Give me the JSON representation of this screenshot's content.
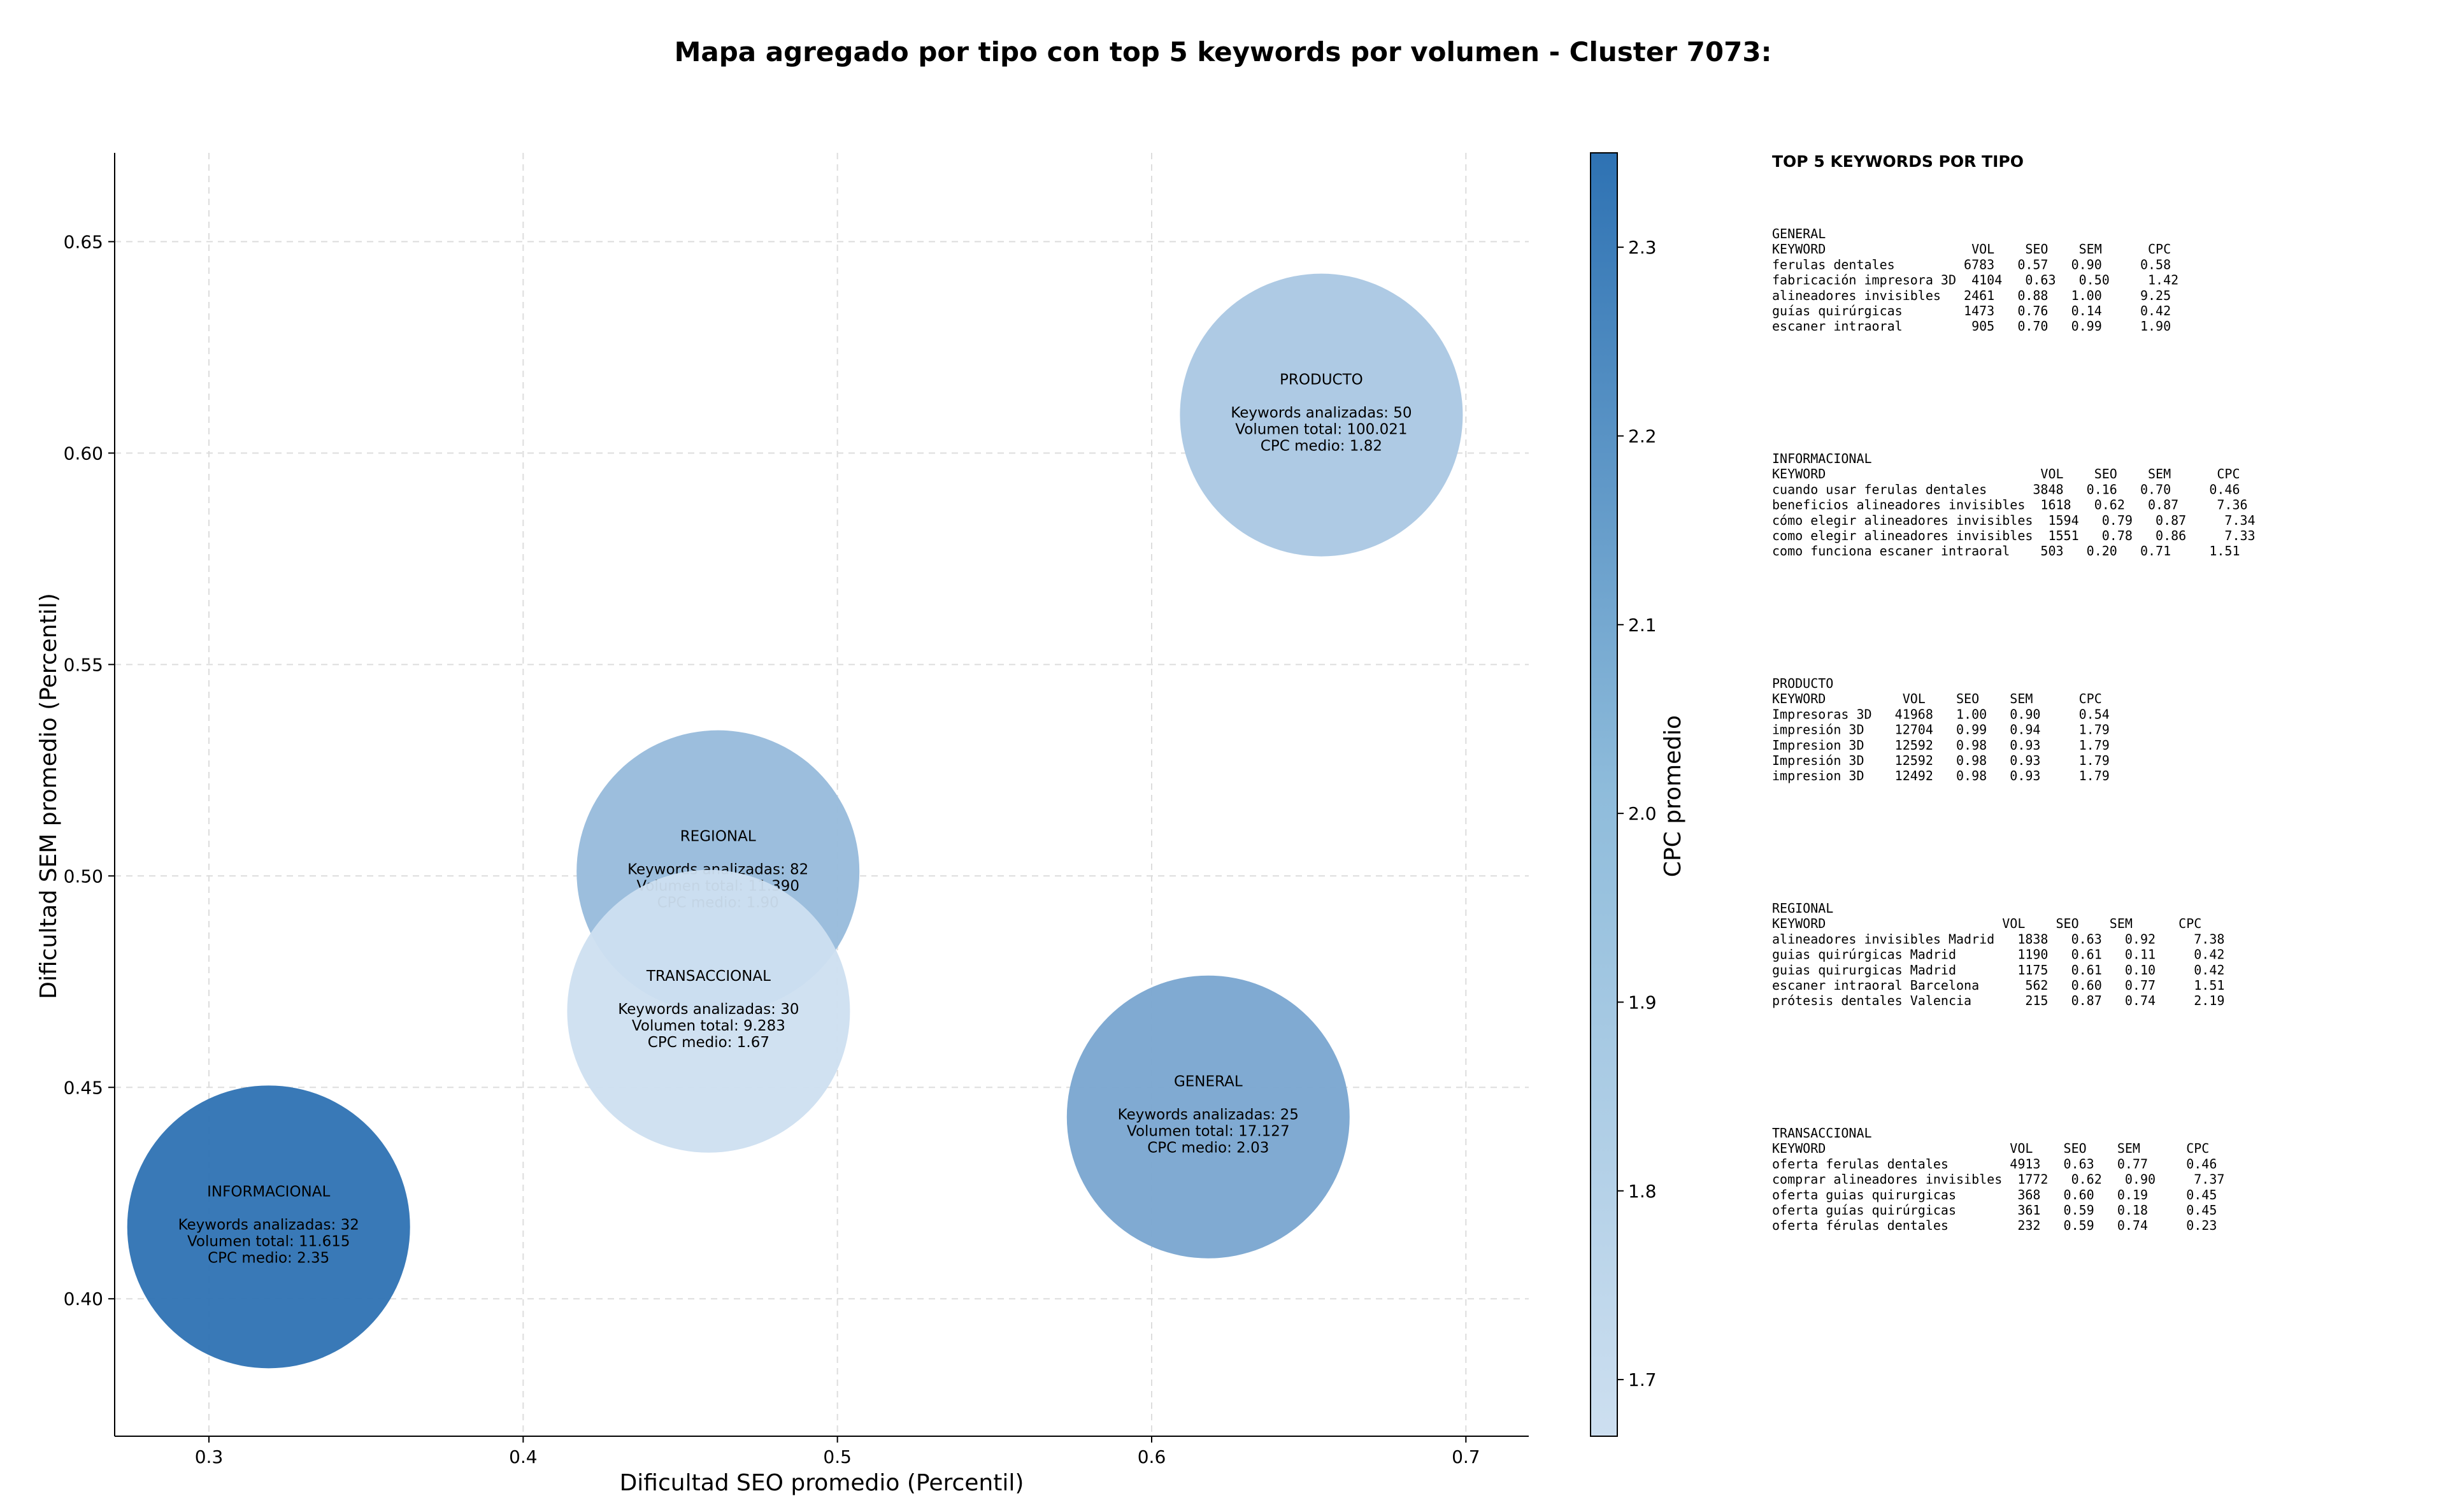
{
  "chart_data": {
    "type": "scatter",
    "title": "Mapa agregado por tipo con top 5 keywords por volumen - Cluster 7073:",
    "xlabel": "Dificultad SEO promedio (Percentil)",
    "ylabel": "Dificultad SEM promedio (Percentil)",
    "xlim": [
      0.27,
      0.72
    ],
    "ylim": [
      0.3675,
      0.671
    ],
    "xticks": [
      0.3,
      0.4,
      0.5,
      0.6,
      0.7
    ],
    "xtick_labels": [
      "0.3",
      "0.4",
      "0.5",
      "0.6",
      "0.7"
    ],
    "yticks": [
      0.4,
      0.45,
      0.5,
      0.55,
      0.6,
      0.65
    ],
    "ytick_labels": [
      "0.40",
      "0.45",
      "0.50",
      "0.55",
      "0.60",
      "0.65"
    ],
    "grid": true,
    "colorbar": {
      "label": "CPC promedio",
      "range": [
        1.67,
        2.35
      ],
      "ticks": [
        1.7,
        1.8,
        1.9,
        2.0,
        2.1,
        2.2,
        2.3
      ],
      "tick_labels": [
        "1.7",
        "1.8",
        "1.9",
        "2.0",
        "2.1",
        "2.2",
        "2.3"
      ],
      "color_low": "#cddff0",
      "color_high": "#2e72b3"
    },
    "bubble_label_prefixes": {
      "keywords": "Keywords analizadas: ",
      "volume": "Volumen total: ",
      "cpc": "CPC medio: "
    },
    "bubbles": [
      {
        "name": "INFORMACIONAL",
        "x": 0.319,
        "y": 0.417,
        "keywords": 32,
        "volume": 11615,
        "volume_label": "11.615",
        "cpc": 2.35,
        "cpc_label": "2.35"
      },
      {
        "name": "REGIONAL",
        "x": 0.462,
        "y": 0.501,
        "keywords": 82,
        "volume": 11390,
        "volume_label": "11.390",
        "cpc": 1.9,
        "cpc_label": "1.90"
      },
      {
        "name": "TRANSACCIONAL",
        "x": 0.459,
        "y": 0.468,
        "keywords": 30,
        "volume": 9283,
        "volume_label": "9.283",
        "cpc": 1.67,
        "cpc_label": "1.67"
      },
      {
        "name": "GENERAL",
        "x": 0.618,
        "y": 0.443,
        "keywords": 25,
        "volume": 17127,
        "volume_label": "17.127",
        "cpc": 2.03,
        "cpc_label": "2.03"
      },
      {
        "name": "PRODUCTO",
        "x": 0.654,
        "y": 0.609,
        "keywords": 50,
        "volume": 100021,
        "volume_label": "100.021",
        "cpc": 1.82,
        "cpc_label": "1.82"
      }
    ]
  },
  "side_panel": {
    "heading": "TOP 5 KEYWORDS POR TIPO",
    "sections": [
      {
        "lines": [
          "GENERAL",
          "KEYWORD                   VOL    SEO    SEM      CPC",
          "ferulas dentales         6783   0.57   0.90     0.58",
          "fabricación impresora 3D  4104   0.63   0.50     1.42",
          "alineadores invisibles   2461   0.88   1.00     9.25",
          "guías quirúrgicas        1473   0.76   0.14     0.42",
          "escaner intraoral         905   0.70   0.99     1.90"
        ]
      },
      {
        "lines": [
          "INFORMACIONAL",
          "KEYWORD                            VOL    SEO    SEM      CPC",
          "cuando usar ferulas dentales      3848   0.16   0.70     0.46",
          "beneficios alineadores invisibles  1618   0.62   0.87     7.36",
          "cómo elegir alineadores invisibles  1594   0.79   0.87     7.34",
          "como elegir alineadores invisibles  1551   0.78   0.86     7.33",
          "como funciona escaner intraoral    503   0.20   0.71     1.51"
        ]
      },
      {
        "lines": [
          "PRODUCTO",
          "KEYWORD          VOL    SEO    SEM      CPC",
          "Impresoras 3D   41968   1.00   0.90     0.54",
          "impresión 3D    12704   0.99   0.94     1.79",
          "Impresion 3D    12592   0.98   0.93     1.79",
          "Impresión 3D    12592   0.98   0.93     1.79",
          "impresion 3D    12492   0.98   0.93     1.79"
        ]
      },
      {
        "lines": [
          "REGIONAL",
          "KEYWORD                       VOL    SEO    SEM      CPC",
          "alineadores invisibles Madrid   1838   0.63   0.92     7.38",
          "guias quirúrgicas Madrid        1190   0.61   0.11     0.42",
          "guias quirurgicas Madrid        1175   0.61   0.10     0.42",
          "escaner intraoral Barcelona      562   0.60   0.77     1.51",
          "prótesis dentales Valencia       215   0.87   0.74     2.19"
        ]
      },
      {
        "lines": [
          "TRANSACCIONAL",
          "KEYWORD                        VOL    SEO    SEM      CPC",
          "oferta ferulas dentales        4913   0.63   0.77     0.46",
          "comprar alineadores invisibles  1772   0.62   0.90     7.37",
          "oferta guias quirurgicas        368   0.60   0.19     0.45",
          "oferta guías quirúrgicas        361   0.59   0.18     0.45",
          "oferta férulas dentales         232   0.59   0.74     0.23"
        ]
      }
    ]
  }
}
